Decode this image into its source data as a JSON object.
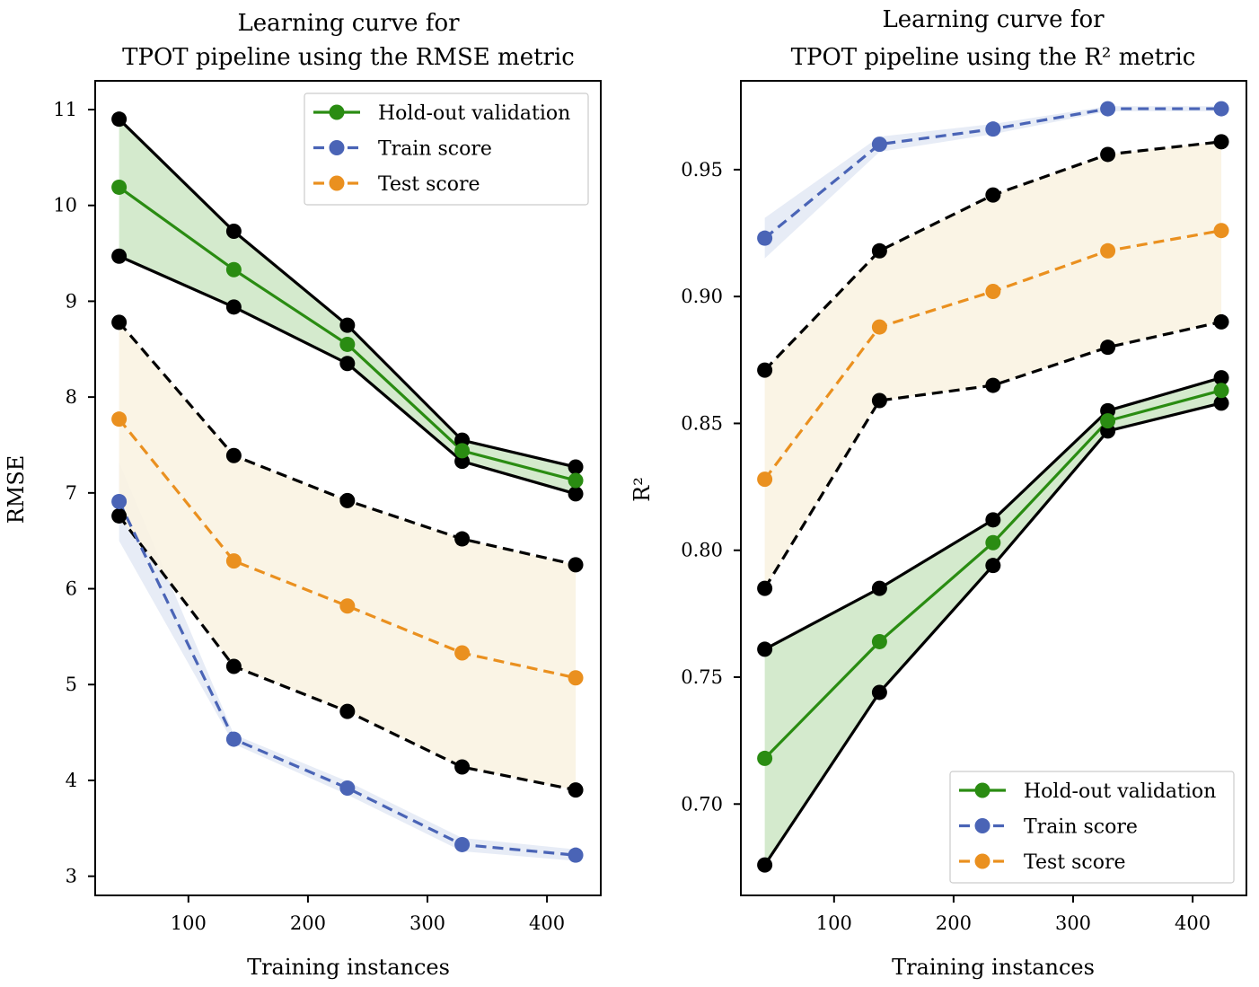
{
  "chart_data": [
    {
      "type": "line",
      "title_line1": "Learning curve for",
      "title_line2": "TPOT pipeline using the RMSE metric",
      "xlabel": "Training instances",
      "ylabel": "RMSE",
      "x": [
        42,
        138,
        233,
        329,
        424
      ],
      "xlim": [
        22,
        445
      ],
      "ylim": [
        2.8,
        11.3
      ],
      "xticks": [
        100,
        200,
        300,
        400
      ],
      "yticks": [
        3,
        4,
        5,
        6,
        7,
        8,
        9,
        10,
        11
      ],
      "legend_position": "top-right",
      "series": [
        {
          "name": "Hold-out validation",
          "color": "#2a8c12",
          "dash": false,
          "values": [
            10.19,
            9.33,
            8.55,
            7.44,
            7.13
          ],
          "band_lower": [
            9.47,
            8.94,
            8.35,
            7.33,
            6.99
          ],
          "band_upper": [
            10.9,
            9.73,
            8.75,
            7.55,
            7.27
          ],
          "band_color": "#cfe8c8",
          "bound_style": "solid",
          "bound_color": "#000000"
        },
        {
          "name": "Train score",
          "color": "#4a64b6",
          "dash": true,
          "values": [
            6.91,
            4.43,
            3.92,
            3.33,
            3.22
          ],
          "band_lower": [
            6.5,
            4.38,
            3.85,
            3.26,
            3.16
          ],
          "band_upper": [
            7.32,
            4.48,
            3.99,
            3.4,
            3.28
          ],
          "band_color": "#e4eaf5",
          "bound_style": "none",
          "bound_color": "#000000"
        },
        {
          "name": "Test score",
          "color": "#ea901f",
          "dash": true,
          "values": [
            7.77,
            6.29,
            5.82,
            5.33,
            5.07
          ],
          "band_lower": [
            6.76,
            5.19,
            4.72,
            4.14,
            3.9
          ],
          "band_upper": [
            8.78,
            7.39,
            6.92,
            6.52,
            6.25
          ],
          "band_color": "#faf3e2",
          "bound_style": "dashed",
          "bound_color": "#000000"
        }
      ]
    },
    {
      "type": "line",
      "title_line1": "Learning curve for",
      "title_line2": "TPOT pipeline using the R² metric",
      "xlabel": "Training instances",
      "ylabel": "R²",
      "x": [
        42,
        138,
        233,
        329,
        424
      ],
      "xlim": [
        22,
        445
      ],
      "ylim": [
        0.664,
        0.985
      ],
      "xticks": [
        100,
        200,
        300,
        400
      ],
      "yticks": [
        0.7,
        0.75,
        0.8,
        0.85,
        0.9,
        0.95
      ],
      "ytick_labels": [
        "0.70",
        "0.75",
        "0.80",
        "0.85",
        "0.90",
        "0.95"
      ],
      "legend_position": "bottom-right",
      "series": [
        {
          "name": "Hold-out validation",
          "color": "#2a8c12",
          "dash": false,
          "values": [
            0.718,
            0.764,
            0.803,
            0.851,
            0.863
          ],
          "band_lower": [
            0.676,
            0.744,
            0.794,
            0.847,
            0.858
          ],
          "band_upper": [
            0.761,
            0.785,
            0.812,
            0.855,
            0.868
          ],
          "band_color": "#cfe8c8",
          "bound_style": "solid",
          "bound_color": "#000000"
        },
        {
          "name": "Train score",
          "color": "#4a64b6",
          "dash": true,
          "values": [
            0.923,
            0.96,
            0.966,
            0.974,
            0.974
          ],
          "band_lower": [
            0.915,
            0.957,
            0.964,
            0.973,
            0.973
          ],
          "band_upper": [
            0.931,
            0.963,
            0.968,
            0.975,
            0.975
          ],
          "band_color": "#e4eaf5",
          "bound_style": "none",
          "bound_color": "#000000"
        },
        {
          "name": "Test score",
          "color": "#ea901f",
          "dash": true,
          "values": [
            0.828,
            0.888,
            0.902,
            0.918,
            0.926
          ],
          "band_lower": [
            0.785,
            0.859,
            0.865,
            0.88,
            0.89
          ],
          "band_upper": [
            0.871,
            0.918,
            0.94,
            0.956,
            0.961
          ],
          "band_color": "#faf3e2",
          "bound_style": "dashed",
          "bound_color": "#000000"
        }
      ]
    }
  ]
}
